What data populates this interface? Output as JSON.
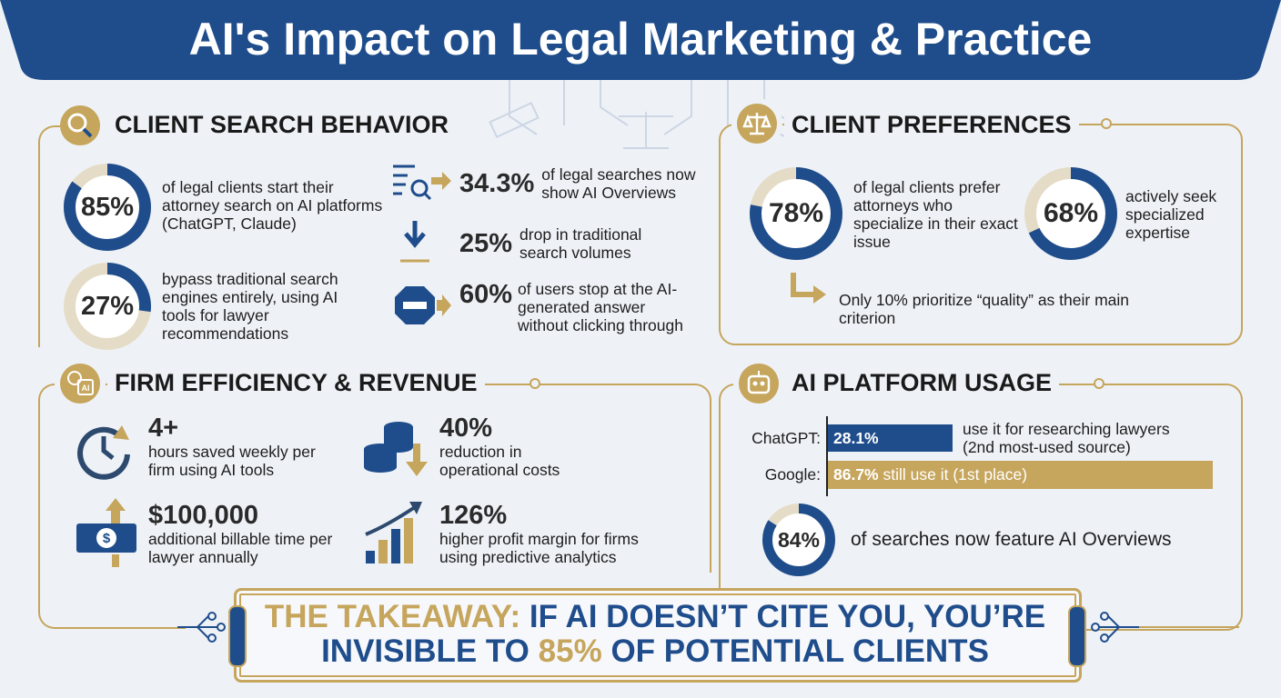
{
  "title": "AI's Impact on Legal Marketing & Practice",
  "search_behavior": {
    "heading": "CLIENT SEARCH BEHAVIOR",
    "donuts": [
      {
        "value": 85,
        "label": "85%",
        "text": "of legal clients start their attorney search on AI platforms (ChatGPT, Claude)"
      },
      {
        "value": 27,
        "label": "27%",
        "text": "bypass traditional search engines entirely, using AI tools for lawyer recommendations"
      }
    ],
    "stats": [
      {
        "figure": "34.3%",
        "text": "of legal searches now show AI Overviews"
      },
      {
        "figure": "25%",
        "text": "drop in traditional search volumes"
      },
      {
        "figure": "60%",
        "text": "of users stop at the AI-generated answer without clicking through"
      }
    ]
  },
  "client_preferences": {
    "heading": "CLIENT PREFERENCES",
    "donuts": [
      {
        "value": 78,
        "label": "78%",
        "text": "of legal clients prefer attorneys who specialize in their exact issue"
      },
      {
        "value": 68,
        "label": "68%",
        "text": "actively seek specialized expertise"
      }
    ],
    "note": "Only 10% prioritize “quality” as their main criterion"
  },
  "firm_efficiency": {
    "heading": "FIRM EFFICIENCY & REVENUE",
    "items": [
      {
        "figure": "4+",
        "text": "hours saved weekly per firm using AI tools"
      },
      {
        "figure": "40%",
        "text": "reduction in operational costs"
      },
      {
        "figure": "$100,000",
        "text": "additional billable time per lawyer annually"
      },
      {
        "figure": "126%",
        "text": "higher profit margin for firms using predictive analytics"
      }
    ]
  },
  "platform_usage": {
    "heading": "AI PLATFORM USAGE",
    "bars": [
      {
        "name": "ChatGPT:",
        "value": 28.1,
        "value_label": "28.1%",
        "text": "use it for researching lawyers (2nd most-used source)"
      },
      {
        "name": "Google:",
        "value": 86.7,
        "value_label": "86.7%",
        "text": "still use it (1st place)"
      }
    ],
    "donut": {
      "value": 84,
      "label": "84%",
      "text": "of searches now feature AI Overviews"
    }
  },
  "takeaway": {
    "lead": "THE TAKEAWAY:",
    "line1": "IF AI DOESN’T CITE YOU, YOU’RE",
    "line2_start": "INVISIBLE TO",
    "highlight": "85%",
    "line2_end": "OF POTENTIAL CLIENTS"
  }
}
